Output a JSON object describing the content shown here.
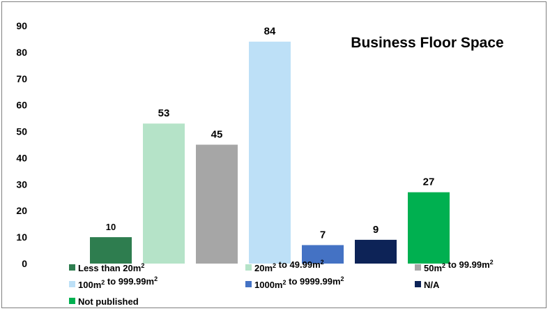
{
  "chart_data": {
    "type": "bar",
    "title": "Business Floor Space",
    "categories": [
      {
        "base": "Less than 20m",
        "sup": "2",
        "after": ""
      },
      {
        "base": "20m",
        "sup": "2",
        "after": " to 49.99m",
        "sup2": "2"
      },
      {
        "base": "50m",
        "sup": "2",
        "after": " to 99.99m",
        "sup2": "2"
      },
      {
        "base": "100m",
        "sup": "2",
        "after": " to 999.99m",
        "sup2": "2"
      },
      {
        "base": "1000m",
        "sup": "2",
        "after": " to 9999.99m",
        "sup2": "2"
      },
      {
        "base": "N/A",
        "sup": "",
        "after": ""
      },
      {
        "base": "Not published",
        "sup": "",
        "after": ""
      }
    ],
    "values": [
      10,
      53,
      45,
      84,
      7,
      9,
      27
    ],
    "data_labels": [
      "10",
      "53",
      "45",
      "84",
      "7",
      "9",
      "27"
    ],
    "colors": [
      "#2e7d4f",
      "#b5e3c8",
      "#a6a6a6",
      "#bde0f7",
      "#4472c4",
      "#0d2357",
      "#00b050"
    ],
    "ylim": [
      0,
      90
    ],
    "yticks": [
      "0",
      "10",
      "20",
      "30",
      "40",
      "50",
      "60",
      "70",
      "80",
      "90"
    ],
    "xlabel": "",
    "ylabel": "",
    "grid": false,
    "legend_position": "bottom"
  }
}
